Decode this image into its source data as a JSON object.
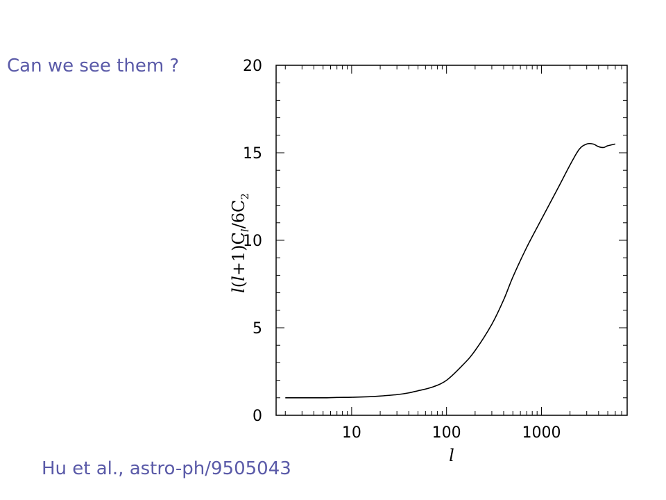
{
  "slide": {
    "title": "Can we see them ?",
    "citation": "Hu et al., astro-ph/9505043"
  },
  "colors": {
    "text_accent": "#5a5aa8",
    "axes": "#000000",
    "curve": "#000000"
  },
  "chart_data": {
    "type": "line",
    "xscale": "log",
    "xlim": [
      1.6,
      8000
    ],
    "ylim": [
      0,
      20
    ],
    "xlabel": "l",
    "ylabel": "l(l+1)C_l/6C_2",
    "xticks_major": [
      10,
      100,
      1000
    ],
    "xtick_labels": [
      "10",
      "100",
      "1000"
    ],
    "yticks_major": [
      0,
      5,
      10,
      15,
      20
    ],
    "ytick_labels": [
      "0",
      "5",
      "10",
      "15",
      "20"
    ],
    "grid": false,
    "legend": "none",
    "series": [
      {
        "x": [
          2,
          3,
          5,
          7,
          10,
          15,
          20,
          30,
          40,
          50,
          70,
          100,
          150,
          200,
          300,
          400,
          500,
          700,
          1000,
          1500,
          2000,
          2500,
          3000,
          3500,
          4000,
          4500,
          5000,
          6000
        ],
        "y": [
          1.0,
          1.0,
          1.0,
          1.02,
          1.03,
          1.06,
          1.1,
          1.18,
          1.28,
          1.4,
          1.6,
          2.0,
          2.9,
          3.7,
          5.2,
          6.6,
          7.9,
          9.6,
          11.2,
          13.0,
          14.3,
          15.2,
          15.5,
          15.5,
          15.35,
          15.3,
          15.4,
          15.5
        ]
      }
    ]
  }
}
